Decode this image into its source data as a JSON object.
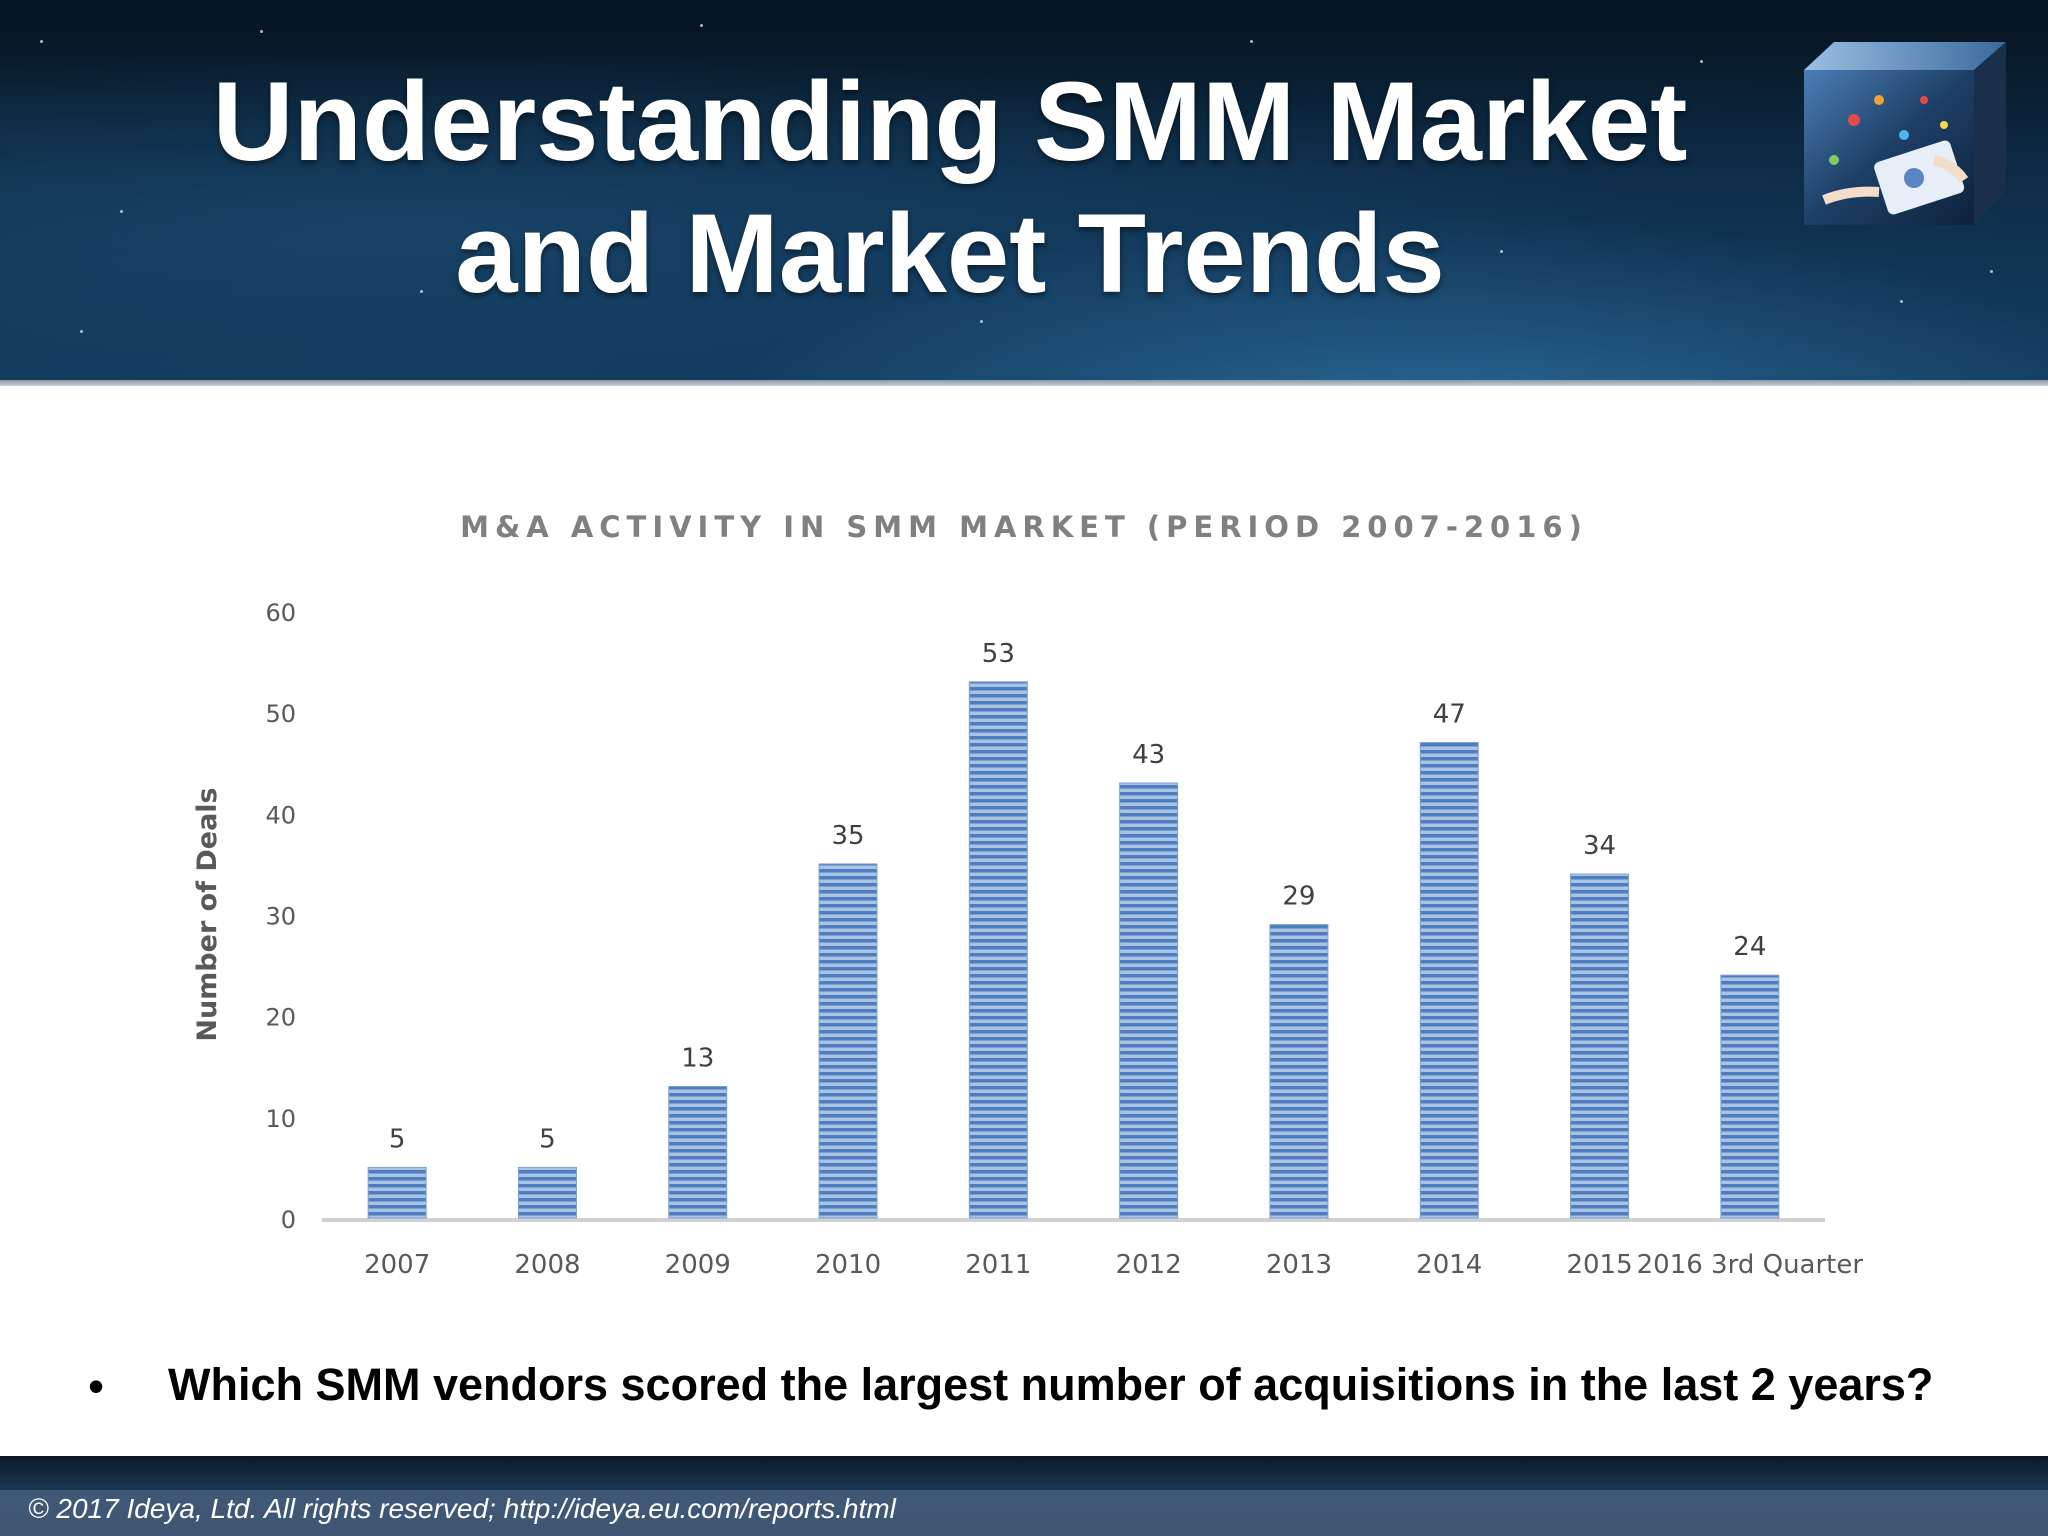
{
  "header": {
    "title_line1": "Understanding SMM Market",
    "title_line2": "and Market Trends",
    "logo_icon": "social-media-tablet-cube-icon"
  },
  "chart_data": {
    "type": "bar",
    "title": "M&A ACTIVITY IN SMM MARKET  (PERIOD  2007-2016)",
    "ylabel": "Number of Deals",
    "xlabel": "",
    "categories": [
      "2007",
      "2008",
      "2009",
      "2010",
      "2011",
      "2012",
      "2013",
      "2014",
      "2015",
      "2016 3rd Quarter"
    ],
    "values": [
      5,
      5,
      13,
      35,
      53,
      43,
      29,
      47,
      34,
      24
    ],
    "ylim": [
      0,
      60
    ],
    "yticks": [
      0,
      10,
      20,
      30,
      40,
      50,
      60
    ],
    "data_labels": true,
    "grid": false,
    "legend": "none",
    "bar_color": "#5b86c4"
  },
  "question": {
    "bullet": "•",
    "text": "Which SMM vendors scored the largest number of acquisitions in the last 2 years?"
  },
  "footer": {
    "copyright": "© 2017 Ideya, Ltd. All rights reserved;  http://ideya.eu.com/reports.html"
  }
}
